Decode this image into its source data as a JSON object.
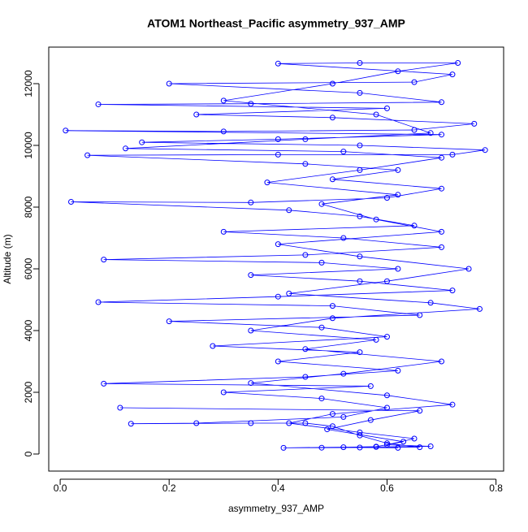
{
  "chart_data": {
    "type": "line",
    "title": "ATOM1 Northeast_Pacific asymmetry_937_AMP",
    "x_label": "asymmetry_937_AMP",
    "y_label": "Altitude (m)",
    "color": "blue",
    "markers": true,
    "xlim": [
      -0.021,
      0.814
    ],
    "ylim": [
      -553,
      13184
    ],
    "xticks": [
      {
        "value": 0,
        "label": "0.0"
      },
      0.2,
      0.4,
      0.6,
      0.8
    ],
    "yticks": [
      0,
      2000,
      4000,
      6000,
      8000,
      10000,
      12000
    ],
    "x": [
      0.62,
      0.55,
      0.48,
      0.41,
      0.58,
      0.66,
      0.6,
      0.55,
      0.5,
      0.45,
      0.35,
      0.13,
      0.25,
      0.52,
      0.6,
      0.48,
      0.3,
      0.57,
      0.08,
      0.45,
      0.62,
      0.4,
      0.55,
      0.28,
      0.6,
      0.48,
      0.2,
      0.66,
      0.5,
      0.07,
      0.4,
      0.72,
      0.55,
      0.35,
      0.62,
      0.48,
      0.08,
      0.45,
      0.7,
      0.52,
      0.3,
      0.65,
      0.55,
      0.42,
      0.02,
      0.35,
      0.6,
      0.7,
      0.5,
      0.62,
      0.45,
      0.05,
      0.4,
      0.72,
      0.78,
      0.55,
      0.15,
      0.4,
      0.7,
      0.01,
      0.3,
      0.65,
      0.76,
      0.5,
      0.25,
      0.6,
      0.07,
      0.35,
      0.7,
      0.55,
      0.2,
      0.65,
      0.72,
      0.4,
      0.55,
      0.73,
      0.62,
      0.5,
      0.3,
      0.58,
      0.68,
      0.45,
      0.12,
      0.52,
      0.7,
      0.55,
      0.38,
      0.62,
      0.48,
      0.58,
      0.7,
      0.4,
      0.55,
      0.75,
      0.6,
      0.42,
      0.68,
      0.77,
      0.5,
      0.35,
      0.58,
      0.45,
      0.7,
      0.52,
      0.35,
      0.6,
      0.72,
      0.5,
      0.42,
      0.55,
      0.65,
      0.6,
      0.68,
      0.52,
      0.58,
      0.63,
      0.49,
      0.57,
      0.66,
      0.11
    ],
    "values": [
      200,
      210,
      205,
      200,
      230,
      220,
      350,
      600,
      900,
      1000,
      1000,
      980,
      1000,
      1200,
      1500,
      1800,
      2000,
      2200,
      2280,
      2500,
      2700,
      3000,
      3300,
      3500,
      3800,
      4100,
      4300,
      4500,
      4800,
      4920,
      5100,
      5300,
      5600,
      5800,
      6000,
      6200,
      6300,
      6450,
      6700,
      7000,
      7200,
      7400,
      7700,
      7900,
      8170,
      8150,
      8300,
      8600,
      8900,
      9200,
      9400,
      9680,
      9700,
      9700,
      9850,
      10000,
      10100,
      10200,
      10350,
      10480,
      10450,
      10500,
      10700,
      10900,
      11000,
      11200,
      11330,
      11350,
      11400,
      11700,
      12000,
      12050,
      12300,
      12650,
      12670,
      12670,
      12400,
      12000,
      11450,
      11000,
      10400,
      10200,
      9900,
      9800,
      9600,
      9200,
      8800,
      8400,
      8100,
      7600,
      7200,
      6800,
      6400,
      6000,
      5600,
      5200,
      4900,
      4700,
      4400,
      4000,
      3700,
      3400,
      3000,
      2600,
      2300,
      1900,
      1600,
      1300,
      1000,
      700,
      500,
      300,
      250,
      220,
      240,
      400,
      800,
      1100,
      1400,
      1500
    ]
  }
}
